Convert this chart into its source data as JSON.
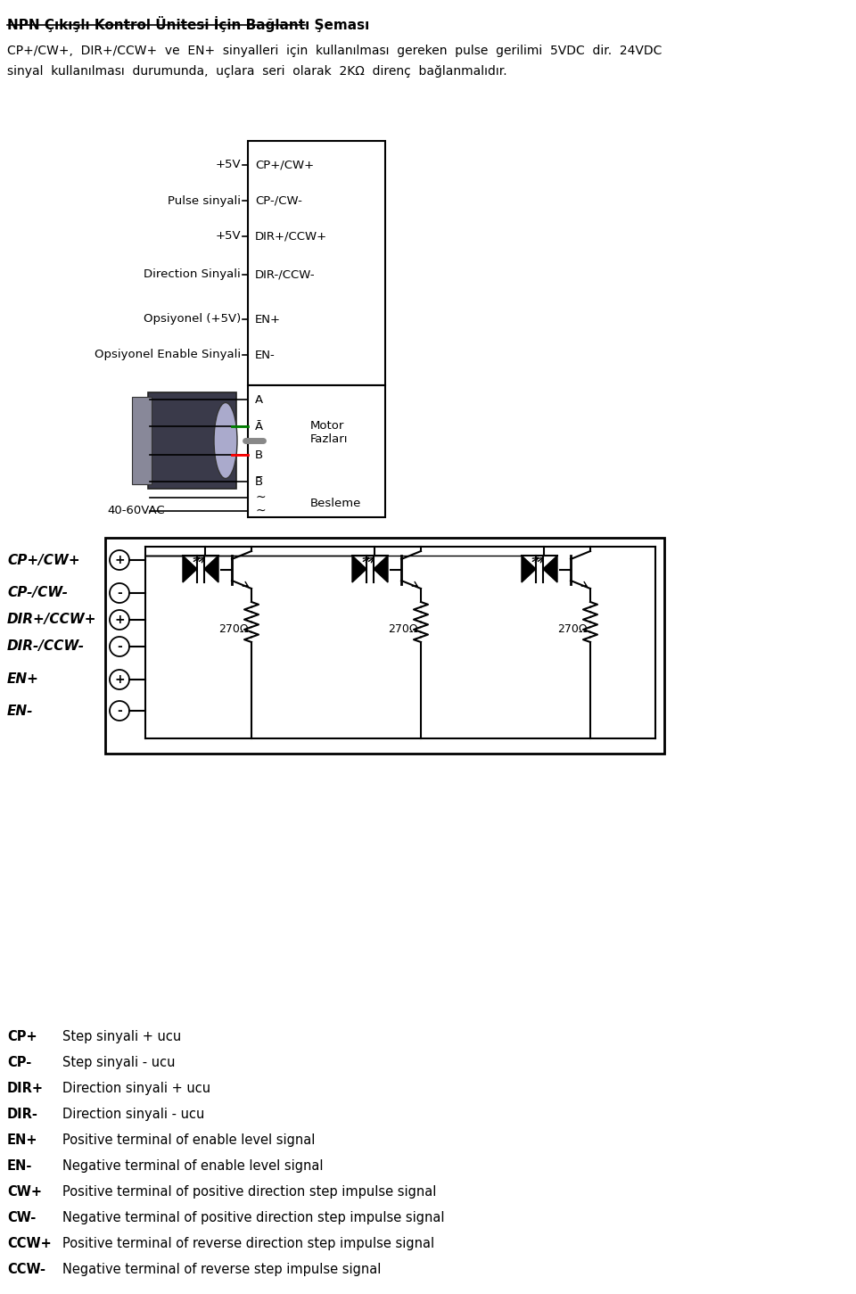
{
  "title": "NPN Çıkışlı Kontrol Ünitesi İçin Bağlantı Şeması",
  "subtitle_line1": "CP+/CW+,  DIR+/CCW+  ve  EN+  sinyalleri  için  kullanılması  gereken  pulse  gerilimi  5VDC  dir.  24VDC",
  "subtitle_line2": "sinyal  kullanılması  durumunda,  uçlara  seri  olarak  2KΩ  direnç  bağlanmalıdır.",
  "left_labels": [
    "+5V",
    "Pulse sinyali",
    "+5V",
    "Direction Sinyali",
    "Opsiyonel (+5V)",
    "Opsiyonel Enable Sinyali"
  ],
  "right_labels": [
    "CP+/CW+",
    "CP-/CW-",
    "DIR+/CCW+",
    "DIR-/CCW-",
    "EN+",
    "EN-"
  ],
  "motor_right_text": "Motor\nFazları",
  "bottom_label": "40-60VAC",
  "bottom_right": "Besleme",
  "circuit_left_labels": [
    "CP+/CW+",
    "CP-/CW-",
    "DIR+/CCW+",
    "DIR-/CCW-",
    "EN+",
    "EN-"
  ],
  "circuit_symbols": [
    "+",
    "-",
    "+",
    "-",
    "+",
    "-"
  ],
  "resistor_value": "270Ω",
  "legend_items": [
    [
      "CP+",
      "Step sinyali + ucu"
    ],
    [
      "CP-",
      "Step sinyali - ucu"
    ],
    [
      "DIR+",
      "Direction sinyali + ucu"
    ],
    [
      "DIR-",
      "Direction sinyali - ucu"
    ],
    [
      "EN+",
      "Positive terminal of enable level signal"
    ],
    [
      "EN-",
      "Negative terminal of enable level signal"
    ],
    [
      "CW+",
      "Positive terminal of positive direction step impulse signal"
    ],
    [
      "CW-",
      "Negative terminal of positive direction step impulse signal"
    ],
    [
      "CCW+",
      "Positive terminal of reverse direction step impulse signal"
    ],
    [
      "CCW-",
      "Negative terminal of reverse step impulse signal"
    ]
  ],
  "bg_color": "#ffffff",
  "text_color": "#000000"
}
